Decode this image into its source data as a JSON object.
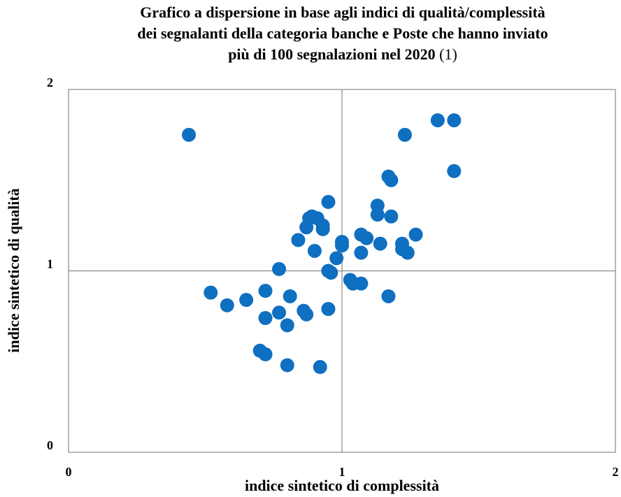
{
  "chart_data": {
    "type": "scatter",
    "title_lines": [
      "Grafico a dispersione in base agli indici di qualità/complessità",
      "dei segnalanti della categoria banche e Poste che hanno inviato",
      "più di 100 segnalazioni nel 2020"
    ],
    "title_note": "(1)",
    "x_label": "indice sintetico di complessità",
    "y_label": "indice sintetico di qualità",
    "xlim": [
      0,
      2
    ],
    "ylim": [
      0,
      2
    ],
    "xticks": [
      0,
      1,
      2
    ],
    "yticks": [
      0,
      1,
      2
    ],
    "crosshair": [
      1,
      1
    ],
    "color": "#0f6fc0",
    "series": [
      {
        "name": "segnalanti",
        "x": [
          0.44,
          0.52,
          0.58,
          0.65,
          0.72,
          0.7,
          0.72,
          0.72,
          0.77,
          0.77,
          0.8,
          0.8,
          0.81,
          0.84,
          0.86,
          0.87,
          0.87,
          0.88,
          0.89,
          0.91,
          0.93,
          0.93,
          0.9,
          0.92,
          0.95,
          0.95,
          0.96,
          0.95,
          0.98,
          1.0,
          1.0,
          1.03,
          1.04,
          1.07,
          1.07,
          1.07,
          1.09,
          1.13,
          1.13,
          1.14,
          1.17,
          1.17,
          1.18,
          1.18,
          1.22,
          1.22,
          1.24,
          1.23,
          1.27,
          1.35,
          1.41,
          1.41
        ],
        "values": [
          1.75,
          0.88,
          0.81,
          0.84,
          0.54,
          0.56,
          0.74,
          0.89,
          1.01,
          0.77,
          0.7,
          0.48,
          0.86,
          1.17,
          0.78,
          0.76,
          1.24,
          1.29,
          1.3,
          1.29,
          1.25,
          1.23,
          1.11,
          0.47,
          1.38,
          1.0,
          0.99,
          0.79,
          1.07,
          1.14,
          1.16,
          0.95,
          0.93,
          0.93,
          1.1,
          1.2,
          1.18,
          1.31,
          1.36,
          1.15,
          0.86,
          1.52,
          1.5,
          1.3,
          1.15,
          1.12,
          1.1,
          1.75,
          1.2,
          1.83,
          1.83,
          1.55
        ]
      }
    ]
  }
}
